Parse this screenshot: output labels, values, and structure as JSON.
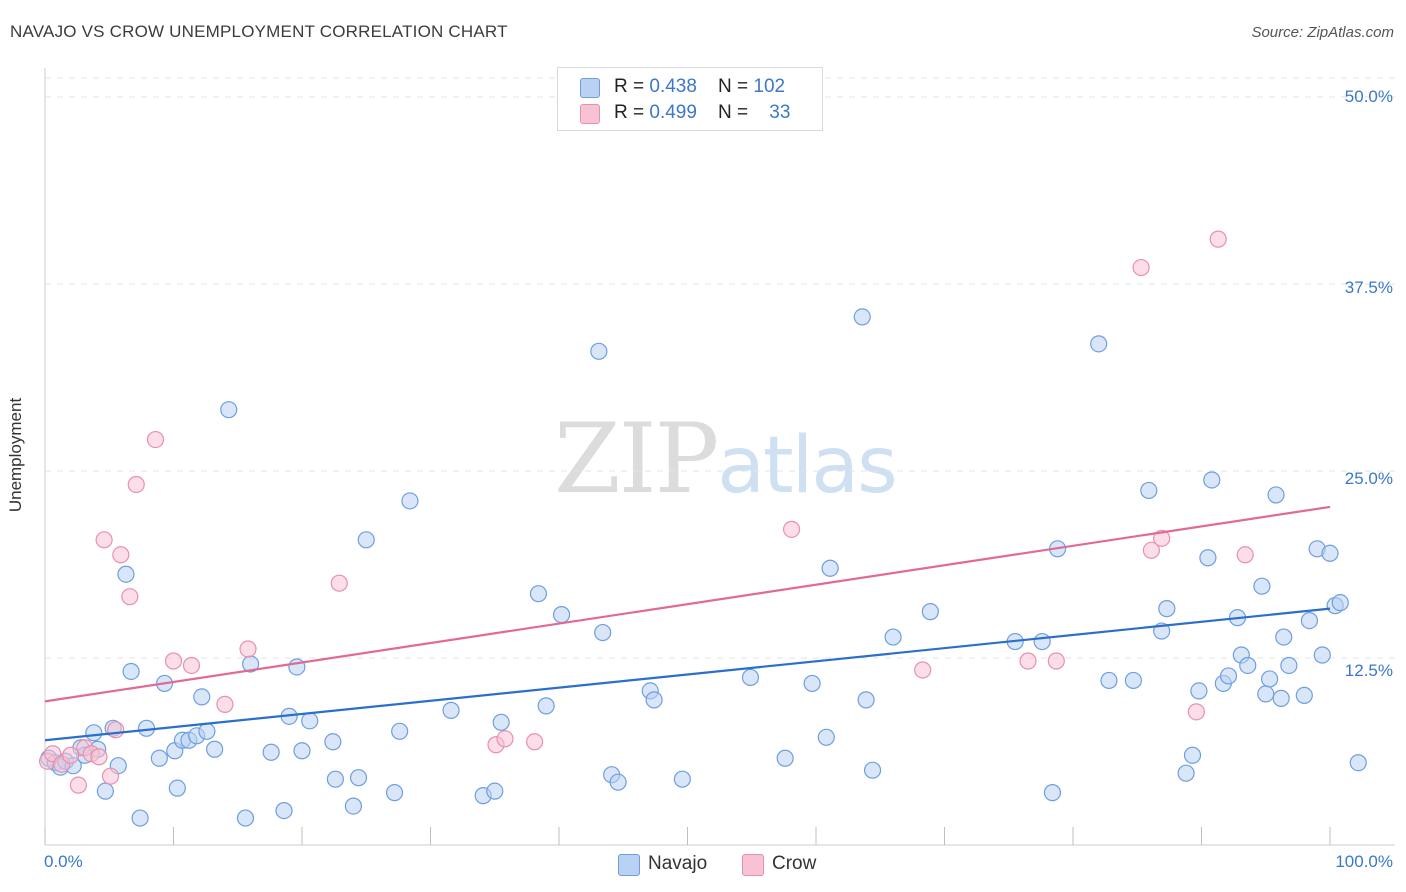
{
  "title": "NAVAJO VS CROW UNEMPLOYMENT CORRELATION CHART",
  "source": "Source: ZipAtlas.com",
  "watermark": {
    "zip": "ZIP",
    "atlas": "atlas"
  },
  "colors": {
    "navajo_fill": "#b9d2f3",
    "navajo_stroke": "#6d9fe0",
    "navajo_line": "#2b6fcc",
    "crow_fill": "#f7c3d3",
    "crow_stroke": "#e890ad",
    "crow_line": "#e06a94",
    "tick_text": "#3b78c9",
    "grid": "#e3e3e3"
  },
  "legend_top": [
    {
      "r_label": "R = ",
      "r_value": "0.438",
      "n_label": "N = ",
      "n_value": "102"
    },
    {
      "r_label": "R = ",
      "r_value": "0.499",
      "n_label": "N = ",
      "n_value": "33"
    }
  ],
  "legend_bottom": [
    "Navajo",
    "Crow"
  ],
  "chart_data": {
    "type": "scatter",
    "title": "NAVAJO VS CROW UNEMPLOYMENT CORRELATION CHART",
    "xlabel": "",
    "ylabel": "Unemployment",
    "xlim": [
      0,
      100
    ],
    "ylim": [
      0,
      50
    ],
    "x_tick_labels": [
      "0.0%",
      "100.0%"
    ],
    "y_ticks": [
      12.5,
      25.0,
      37.5,
      50.0
    ],
    "y_tick_labels": [
      "12.5%",
      "25.0%",
      "37.5%",
      "50.0%"
    ],
    "grid": "horizontal dashed",
    "legend_position": "top-center",
    "series": [
      {
        "name": "Navajo",
        "r": 0.438,
        "n": 102,
        "trend": {
          "x": [
            0,
            100
          ],
          "y": [
            7.0,
            15.8
          ]
        },
        "points": [
          [
            0.3,
            5.8
          ],
          [
            0.8,
            5.5
          ],
          [
            1.2,
            5.2
          ],
          [
            1.6,
            5.6
          ],
          [
            2.2,
            5.3
          ],
          [
            2.8,
            6.5
          ],
          [
            3.1,
            6.0
          ],
          [
            3.8,
            7.5
          ],
          [
            4.1,
            6.4
          ],
          [
            4.7,
            3.6
          ],
          [
            5.3,
            7.8
          ],
          [
            5.7,
            5.3
          ],
          [
            6.3,
            18.1
          ],
          [
            6.7,
            11.6
          ],
          [
            7.4,
            1.8
          ],
          [
            7.9,
            7.8
          ],
          [
            8.9,
            5.8
          ],
          [
            9.3,
            10.8
          ],
          [
            10.1,
            6.3
          ],
          [
            10.3,
            3.8
          ],
          [
            10.7,
            7.0
          ],
          [
            11.2,
            7.0
          ],
          [
            11.8,
            7.3
          ],
          [
            12.2,
            9.9
          ],
          [
            12.6,
            7.6
          ],
          [
            13.2,
            6.4
          ],
          [
            14.3,
            29.1
          ],
          [
            15.6,
            1.8
          ],
          [
            16.0,
            12.1
          ],
          [
            17.6,
            6.2
          ],
          [
            18.6,
            2.3
          ],
          [
            19.0,
            8.6
          ],
          [
            19.6,
            11.9
          ],
          [
            20.0,
            6.3
          ],
          [
            20.6,
            8.3
          ],
          [
            22.4,
            6.9
          ],
          [
            22.6,
            4.4
          ],
          [
            24.0,
            2.6
          ],
          [
            24.4,
            4.5
          ],
          [
            25.0,
            20.4
          ],
          [
            27.2,
            3.5
          ],
          [
            27.6,
            7.6
          ],
          [
            28.4,
            23.0
          ],
          [
            31.6,
            9.0
          ],
          [
            34.1,
            3.3
          ],
          [
            35.0,
            3.6
          ],
          [
            35.5,
            8.2
          ],
          [
            38.4,
            16.8
          ],
          [
            39.0,
            9.3
          ],
          [
            40.2,
            15.4
          ],
          [
            43.1,
            33.0
          ],
          [
            43.4,
            14.2
          ],
          [
            44.1,
            4.7
          ],
          [
            44.6,
            4.2
          ],
          [
            47.1,
            10.3
          ],
          [
            47.4,
            9.7
          ],
          [
            49.6,
            4.4
          ],
          [
            54.9,
            11.2
          ],
          [
            57.6,
            5.8
          ],
          [
            59.7,
            10.8
          ],
          [
            60.8,
            7.2
          ],
          [
            61.1,
            18.5
          ],
          [
            63.6,
            35.3
          ],
          [
            63.9,
            9.7
          ],
          [
            64.4,
            5.0
          ],
          [
            66.0,
            13.9
          ],
          [
            68.9,
            15.6
          ],
          [
            75.5,
            13.6
          ],
          [
            77.6,
            13.6
          ],
          [
            78.4,
            3.5
          ],
          [
            78.8,
            19.8
          ],
          [
            82.0,
            33.5
          ],
          [
            82.8,
            11.0
          ],
          [
            84.7,
            11.0
          ],
          [
            85.9,
            23.7
          ],
          [
            86.9,
            14.3
          ],
          [
            87.3,
            15.8
          ],
          [
            88.8,
            4.8
          ],
          [
            89.3,
            6.0
          ],
          [
            89.8,
            10.3
          ],
          [
            90.5,
            19.2
          ],
          [
            90.8,
            24.4
          ],
          [
            91.7,
            10.8
          ],
          [
            92.1,
            11.3
          ],
          [
            92.8,
            15.2
          ],
          [
            93.1,
            12.7
          ],
          [
            93.6,
            12.0
          ],
          [
            94.7,
            17.3
          ],
          [
            95.0,
            10.1
          ],
          [
            95.3,
            11.1
          ],
          [
            95.8,
            23.4
          ],
          [
            96.4,
            13.9
          ],
          [
            96.8,
            12.0
          ],
          [
            98.0,
            10.0
          ],
          [
            98.4,
            15.0
          ],
          [
            99.0,
            19.8
          ],
          [
            99.4,
            12.7
          ],
          [
            100.0,
            19.5
          ],
          [
            100.4,
            16.0
          ],
          [
            100.8,
            16.2
          ],
          [
            96.2,
            9.8
          ],
          [
            102.2,
            5.5
          ]
        ]
      },
      {
        "name": "Crow",
        "r": 0.499,
        "n": 33,
        "trend": {
          "x": [
            0,
            100
          ],
          "y": [
            9.6,
            22.6
          ]
        },
        "points": [
          [
            0.2,
            5.6
          ],
          [
            0.6,
            6.1
          ],
          [
            1.3,
            5.4
          ],
          [
            2.0,
            6.0
          ],
          [
            2.6,
            4.0
          ],
          [
            3.1,
            6.5
          ],
          [
            3.6,
            6.1
          ],
          [
            4.2,
            5.9
          ],
          [
            4.6,
            20.4
          ],
          [
            5.1,
            4.6
          ],
          [
            5.5,
            7.7
          ],
          [
            5.9,
            19.4
          ],
          [
            6.6,
            16.6
          ],
          [
            7.1,
            24.1
          ],
          [
            8.6,
            27.1
          ],
          [
            10.0,
            12.3
          ],
          [
            11.4,
            12.0
          ],
          [
            14.0,
            9.4
          ],
          [
            15.8,
            13.1
          ],
          [
            22.9,
            17.5
          ],
          [
            35.1,
            6.7
          ],
          [
            35.8,
            7.1
          ],
          [
            38.1,
            6.9
          ],
          [
            58.1,
            21.1
          ],
          [
            68.3,
            11.7
          ],
          [
            76.5,
            12.3
          ],
          [
            78.7,
            12.3
          ],
          [
            85.3,
            38.6
          ],
          [
            86.1,
            19.7
          ],
          [
            86.9,
            20.5
          ],
          [
            89.6,
            8.9
          ],
          [
            91.3,
            40.5
          ],
          [
            93.4,
            19.4
          ]
        ]
      }
    ]
  }
}
